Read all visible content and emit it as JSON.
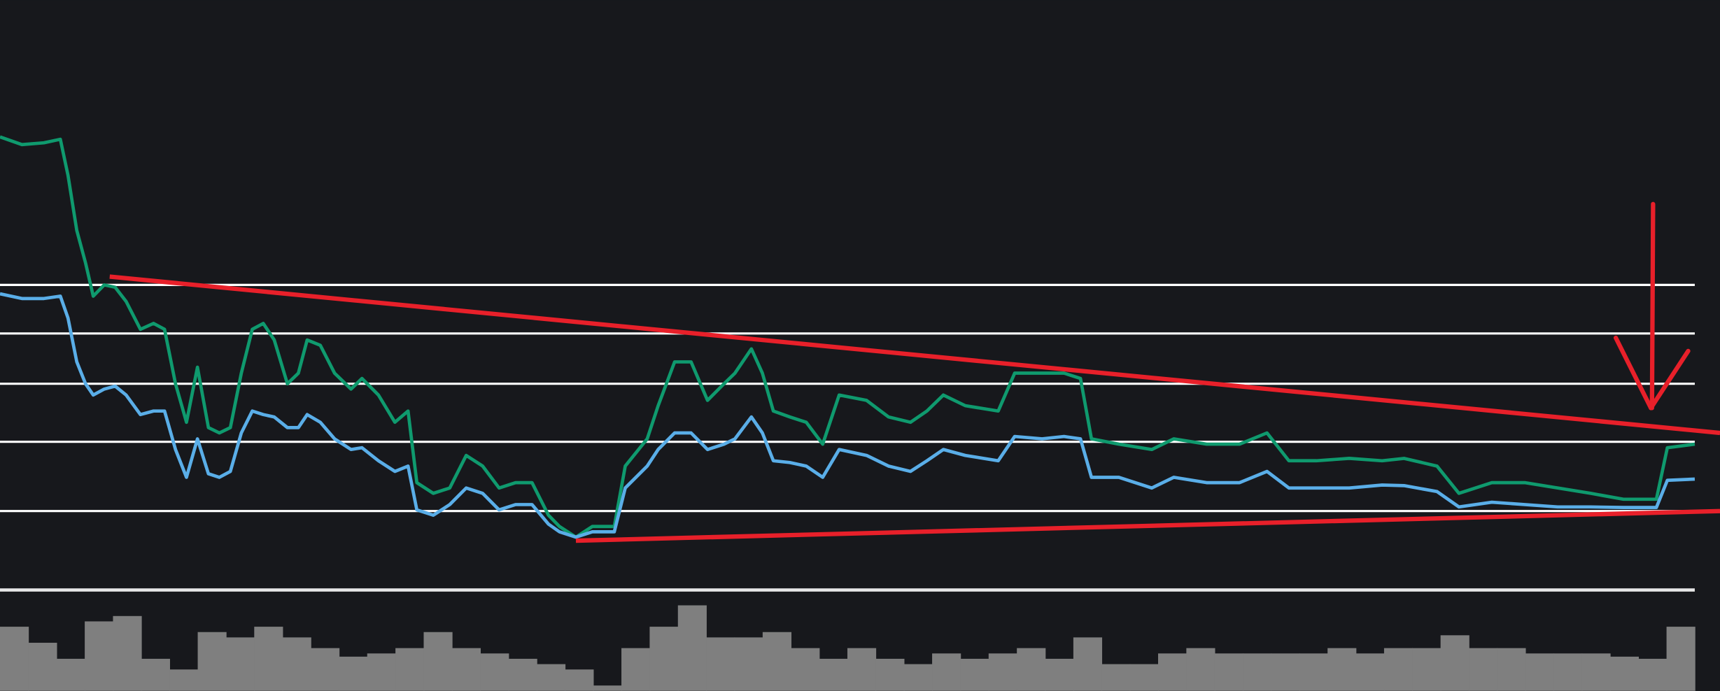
{
  "chart_data": {
    "type": "line",
    "x": [
      0,
      20,
      40,
      55,
      62,
      70,
      78,
      85,
      95,
      105,
      115,
      128,
      140,
      150,
      160,
      170,
      180,
      190,
      200,
      210,
      220,
      230,
      240,
      250,
      262,
      272,
      280,
      292,
      305,
      320,
      330,
      345,
      360,
      372,
      380,
      395,
      410,
      425,
      440,
      455,
      470,
      485,
      500,
      510,
      525,
      540,
      560,
      570,
      590,
      600,
      615,
      630,
      645,
      660,
      670,
      685,
      695,
      705,
      720,
      735,
      750,
      765,
      790,
      810,
      830,
      845,
      860,
      880,
      910,
      925,
      950,
      970,
      985,
      995,
      1020,
      1050,
      1070,
      1100,
      1130,
      1155,
      1175,
      1200,
      1230,
      1260,
      1280,
      1310,
      1330,
      1360,
      1390,
      1420,
      1450,
      1480,
      1510,
      1520,
      1545
    ],
    "xlim": [
      0,
      1568
    ],
    "ylim": [
      0,
      100
    ],
    "series": [
      {
        "color": "#0f9a6e",
        "values": [
          76.9,
          75.6,
          75.9,
          76.5,
          70.4,
          61.1,
          55.6,
          50.0,
          51.9,
          51.5,
          49.1,
          44.4,
          45.4,
          44.4,
          35.2,
          28.7,
          38.0,
          27.8,
          26.9,
          27.8,
          37.0,
          44.4,
          45.4,
          42.6,
          35.2,
          37.0,
          42.6,
          41.7,
          37.0,
          34.3,
          36.1,
          33.3,
          28.7,
          30.6,
          18.5,
          16.7,
          17.6,
          23.1,
          21.3,
          17.6,
          18.5,
          18.5,
          13.0,
          11.1,
          9.3,
          11.1,
          11.1,
          21.3,
          25.9,
          31.5,
          38.9,
          38.9,
          32.4,
          35.2,
          37.0,
          41.1,
          37.0,
          30.6,
          29.6,
          28.7,
          25.0,
          33.3,
          32.4,
          29.6,
          28.7,
          30.6,
          33.3,
          31.5,
          30.6,
          37.0,
          37.0,
          37.0,
          36.1,
          25.9,
          25.0,
          24.1,
          25.9,
          25.0,
          25.0,
          26.9,
          22.2,
          22.2,
          22.6,
          22.2,
          22.6,
          21.3,
          16.7,
          18.5,
          18.5,
          17.6,
          16.7,
          15.7,
          15.7,
          24.4,
          25.0
        ]
      },
      {
        "color": "#5aaee8",
        "values": [
          50.4,
          49.6,
          49.6,
          50.0,
          46.3,
          38.9,
          35.2,
          33.3,
          34.3,
          34.8,
          33.3,
          30.0,
          30.6,
          30.6,
          24.1,
          19.4,
          25.9,
          20.0,
          19.4,
          20.4,
          26.9,
          30.6,
          30.0,
          29.6,
          27.8,
          27.8,
          30.0,
          28.7,
          25.9,
          24.1,
          24.4,
          22.2,
          20.4,
          21.3,
          13.9,
          13.0,
          14.8,
          17.6,
          16.7,
          13.9,
          14.8,
          14.8,
          11.5,
          10.2,
          9.3,
          10.2,
          10.2,
          17.6,
          21.3,
          24.1,
          26.9,
          26.9,
          24.1,
          25.0,
          25.9,
          29.6,
          26.9,
          22.2,
          21.9,
          21.3,
          19.4,
          24.1,
          23.1,
          21.3,
          20.4,
          22.2,
          24.1,
          23.1,
          22.2,
          26.3,
          25.9,
          26.3,
          25.9,
          19.4,
          19.4,
          17.6,
          19.4,
          18.5,
          18.5,
          20.4,
          17.6,
          17.6,
          17.6,
          18.1,
          18.0,
          17.0,
          14.4,
          15.2,
          14.8,
          14.4,
          14.4,
          14.3,
          14.3,
          18.9,
          19.1
        ]
      }
    ],
    "levels": {
      "color": "#ffffff",
      "values": [
        51.9,
        43.7,
        35.2,
        25.4,
        13.7
      ]
    },
    "trendlines": [
      {
        "color": "#e8202a",
        "x": [
          100,
          1568
        ],
        "values": [
          53.3,
          26.9
        ]
      },
      {
        "color": "#e8202a",
        "x": [
          525,
          1568
        ],
        "values": [
          8.7,
          13.7
        ]
      }
    ],
    "volume": {
      "color": "#7f7f7f",
      "ylim": [
        0,
        80
      ],
      "values": [
        60,
        45,
        30,
        65,
        70,
        30,
        20,
        55,
        50,
        60,
        50,
        40,
        32,
        35,
        40,
        55,
        40,
        35,
        30,
        25,
        20,
        5,
        40,
        60,
        80,
        50,
        50,
        55,
        40,
        30,
        40,
        30,
        25,
        35,
        30,
        35,
        40,
        30,
        50,
        25,
        25,
        35,
        40,
        35,
        35,
        35,
        35,
        40,
        35,
        40,
        40,
        52,
        40,
        40,
        35,
        35,
        35,
        32,
        30,
        60
      ]
    }
  }
}
